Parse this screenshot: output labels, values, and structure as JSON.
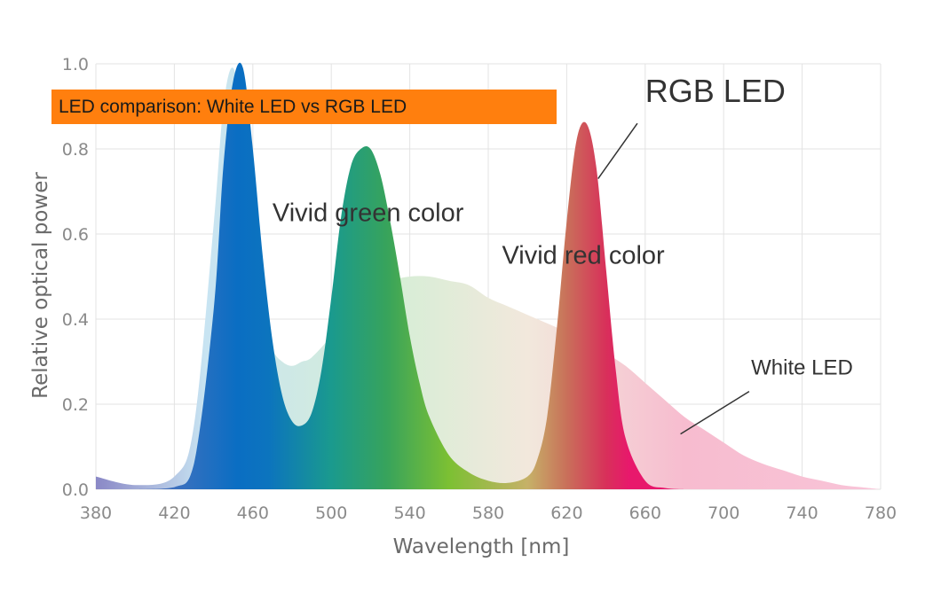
{
  "banner": {
    "text": "LED comparison: White LED vs RGB LED"
  },
  "chart_data": {
    "type": "area",
    "xlabel": "Wavelength [nm]",
    "ylabel": "Relative optical power",
    "xlim": [
      380,
      780
    ],
    "ylim": [
      0,
      1.0
    ],
    "x_ticks": [
      "380",
      "420",
      "460",
      "500",
      "540",
      "580",
      "620",
      "660",
      "700",
      "740",
      "780"
    ],
    "y_ticks": [
      "0.0",
      "0.2",
      "0.4",
      "0.6",
      "0.8",
      "1.0"
    ],
    "grid": true,
    "series": [
      {
        "name": "White LED",
        "x": [
          380,
          400,
          420,
          430,
          440,
          445,
          450,
          455,
          460,
          465,
          470,
          475,
          480,
          485,
          490,
          500,
          510,
          520,
          530,
          540,
          550,
          560,
          570,
          580,
          590,
          600,
          610,
          620,
          630,
          640,
          650,
          660,
          670,
          680,
          690,
          700,
          710,
          720,
          730,
          740,
          750,
          760,
          770,
          780
        ],
        "y": [
          0.03,
          0.01,
          0.03,
          0.15,
          0.62,
          0.9,
          0.99,
          0.85,
          0.6,
          0.42,
          0.33,
          0.3,
          0.29,
          0.3,
          0.31,
          0.36,
          0.42,
          0.47,
          0.49,
          0.5,
          0.5,
          0.49,
          0.48,
          0.45,
          0.43,
          0.41,
          0.39,
          0.37,
          0.35,
          0.32,
          0.29,
          0.25,
          0.21,
          0.17,
          0.14,
          0.11,
          0.08,
          0.06,
          0.045,
          0.03,
          0.02,
          0.01,
          0.005,
          0.0
        ]
      },
      {
        "name": "RGB LED",
        "x": [
          380,
          400,
          420,
          430,
          440,
          445,
          450,
          455,
          460,
          465,
          470,
          475,
          480,
          485,
          490,
          495,
          500,
          505,
          510,
          515,
          520,
          525,
          530,
          535,
          540,
          545,
          550,
          560,
          570,
          580,
          590,
          600,
          605,
          610,
          615,
          620,
          625,
          630,
          635,
          640,
          645,
          650,
          660,
          670,
          680
        ],
        "y": [
          0.0,
          0.0,
          0.005,
          0.06,
          0.42,
          0.76,
          0.96,
          0.99,
          0.8,
          0.55,
          0.35,
          0.22,
          0.16,
          0.15,
          0.18,
          0.28,
          0.45,
          0.64,
          0.76,
          0.8,
          0.8,
          0.74,
          0.63,
          0.5,
          0.36,
          0.25,
          0.17,
          0.08,
          0.04,
          0.02,
          0.015,
          0.03,
          0.07,
          0.17,
          0.38,
          0.63,
          0.82,
          0.86,
          0.76,
          0.52,
          0.28,
          0.12,
          0.02,
          0.003,
          0.0
        ]
      }
    ],
    "annotations": [
      {
        "text": "RGB LED",
        "x": 660,
        "y": 0.91,
        "size": 36,
        "leader_from": [
          636,
          0.73
        ],
        "leader_to": [
          656,
          0.86
        ]
      },
      {
        "text": "Vivid green color",
        "x": 470,
        "y": 0.63,
        "size": 29
      },
      {
        "text": "Vivid red color",
        "x": 587,
        "y": 0.53,
        "size": 29
      },
      {
        "text": "White LED",
        "x": 714,
        "y": 0.27,
        "size": 24,
        "leader_from": [
          678,
          0.13
        ],
        "leader_to": [
          713,
          0.23
        ]
      }
    ],
    "colors": {
      "white_led_spectrum": [
        "#8a88c6",
        "#c8e4f2",
        "#d6eed6",
        "#f2e8dc",
        "#f7bccf",
        "#f8c4d8"
      ],
      "rgb_led_spectrum": [
        "#7d73b8",
        "#0a6ec3",
        "#0c74be",
        "#1a9a8e",
        "#37a35c",
        "#7cc033",
        "#c6b168",
        "#c9705a",
        "#d8305a",
        "#e8186c"
      ],
      "grid": "#e3e3e3"
    }
  }
}
